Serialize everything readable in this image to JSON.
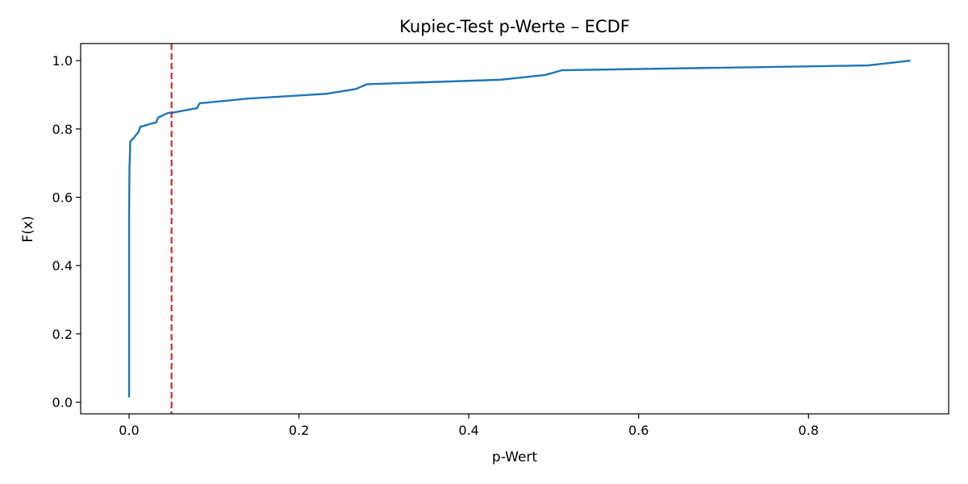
{
  "chart_data": {
    "type": "line",
    "title": "Kupiec-Test p-Werte – ECDF",
    "xlabel": "p-Wert",
    "ylabel": "F(x)",
    "xlim": [
      -0.057,
      0.965
    ],
    "ylim": [
      -0.034,
      1.05
    ],
    "xticks": [
      0.0,
      0.2,
      0.4,
      0.6,
      0.8
    ],
    "xtick_labels": [
      "0.0",
      "0.2",
      "0.4",
      "0.6",
      "0.8"
    ],
    "yticks": [
      0.0,
      0.2,
      0.4,
      0.6,
      0.8,
      1.0
    ],
    "ytick_labels": [
      "0.0",
      "0.2",
      "0.4",
      "0.6",
      "0.8",
      "1.0"
    ],
    "grid": false,
    "series": [
      {
        "color": "#1f77b4",
        "x": [
          0.0,
          0.0,
          0.0005,
          0.001,
          0.0012,
          0.0015,
          0.002,
          0.003,
          0.006,
          0.008,
          0.011,
          0.013,
          0.016,
          0.02,
          0.025,
          0.032,
          0.034,
          0.046,
          0.05,
          0.08,
          0.083,
          0.14,
          0.233,
          0.267,
          0.28,
          0.437,
          0.49,
          0.51,
          0.87,
          0.92
        ],
        "y": [
          0.014,
          0.55,
          0.69,
          0.722,
          0.75,
          0.764,
          0.764,
          0.768,
          0.775,
          0.782,
          0.79,
          0.806,
          0.808,
          0.811,
          0.815,
          0.819,
          0.833,
          0.847,
          0.847,
          0.861,
          0.875,
          0.889,
          0.903,
          0.917,
          0.931,
          0.944,
          0.958,
          0.972,
          0.986,
          1.0
        ]
      }
    ],
    "reference_line": {
      "orientation": "vertical",
      "x": 0.05,
      "color": "#d62728",
      "style": "dashed"
    }
  }
}
